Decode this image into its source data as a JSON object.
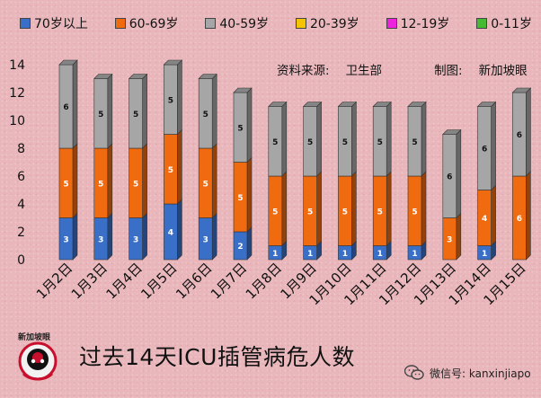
{
  "legend": [
    {
      "label": "70岁以上",
      "color": "#3a6fc8"
    },
    {
      "label": "60-69岁",
      "color": "#f06a10"
    },
    {
      "label": "40-59岁",
      "color": "#a6a6a6"
    },
    {
      "label": "20-39岁",
      "color": "#f5c400"
    },
    {
      "label": "12-19岁",
      "color": "#ee22dd"
    },
    {
      "label": "0-11岁",
      "color": "#44bb33"
    }
  ],
  "source_label": "资料来源:",
  "source_value": "卫生部",
  "made_label": "制图:",
  "made_value": "新加坡眼",
  "footer_title": "过去14天ICU插管病危人数",
  "logo_text": "新加坡眼",
  "wechat_text": "微信号: kanxinjiapo",
  "chart_data": {
    "type": "bar",
    "stacked": true,
    "categories": [
      "1月2日",
      "1月3日",
      "1月4日",
      "1月5日",
      "1月6日",
      "1月7日",
      "1月8日",
      "1月9日",
      "1月10日",
      "1月11日",
      "1月12日",
      "1月13日",
      "1月14日",
      "1月15日"
    ],
    "ylim": [
      0,
      14
    ],
    "yticks": [
      0,
      2,
      4,
      6,
      8,
      10,
      12,
      14
    ],
    "series": [
      {
        "name": "70岁以上",
        "color": "#3a6fc8",
        "values": [
          3,
          3,
          3,
          4,
          3,
          2,
          1,
          1,
          1,
          1,
          1,
          0,
          1,
          0
        ]
      },
      {
        "name": "60-69岁",
        "color": "#f06a10",
        "values": [
          5,
          5,
          5,
          5,
          5,
          5,
          5,
          5,
          5,
          5,
          5,
          3,
          4,
          6
        ]
      },
      {
        "name": "40-59岁",
        "color": "#a6a6a6",
        "values": [
          6,
          5,
          5,
          5,
          5,
          5,
          5,
          5,
          5,
          5,
          5,
          6,
          6,
          6
        ]
      }
    ]
  }
}
